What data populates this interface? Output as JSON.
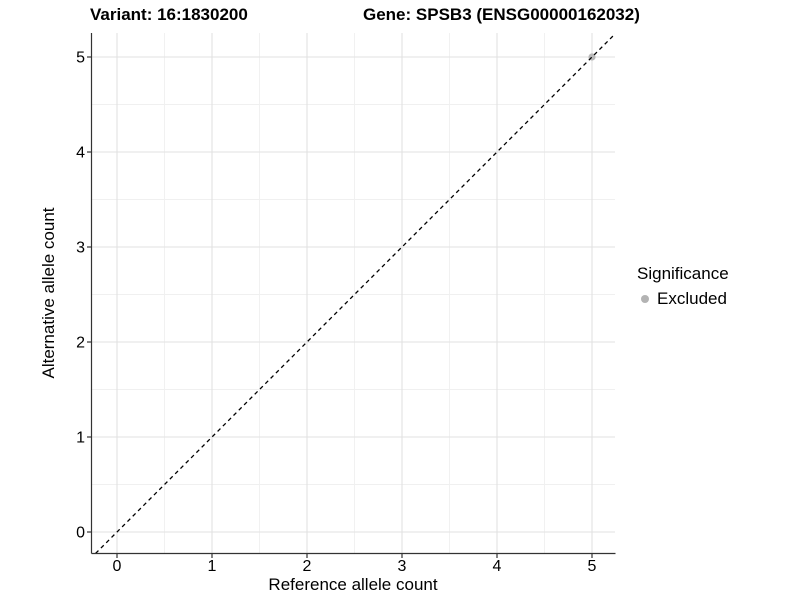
{
  "chart_data": {
    "type": "scatter",
    "title_left": "Variant: 16:1830200",
    "title_right": "Gene: SPSB3 (ENSG00000162032)",
    "xlabel": "Reference allele count",
    "ylabel": "Alternative allele count",
    "xlim": [
      -0.26,
      5.26
    ],
    "ylim": [
      -0.26,
      5.26
    ],
    "xticks": [
      0,
      1,
      2,
      3,
      4,
      5
    ],
    "yticks": [
      0,
      1,
      2,
      3,
      4,
      5
    ],
    "xminor": [
      0.5,
      1.5,
      2.5,
      3.5,
      4.5
    ],
    "yminor": [
      0.5,
      1.5,
      2.5,
      3.5,
      4.5
    ],
    "grid": {
      "major": true,
      "minor": true
    },
    "series": [
      {
        "name": "Excluded",
        "color": "#b9b9b9",
        "points": [
          {
            "x": 5,
            "y": 5
          }
        ]
      }
    ],
    "reference_line": {
      "slope": 1,
      "intercept": 0,
      "style": "dashed",
      "color": "#000000",
      "note": "identity line y = x"
    },
    "legend": {
      "title": "Significance",
      "position": "right",
      "entries": [
        {
          "label": "Excluded",
          "color": "#b3b3b3",
          "marker": "circle"
        }
      ]
    }
  },
  "colors": {
    "background": "#ffffff",
    "grid_major": "#e2e2e2",
    "grid_minor": "#f0f0f0",
    "axis_line": "#333333",
    "tick_mark": "#333333",
    "tick_label": "#000000",
    "text": "#000000"
  }
}
